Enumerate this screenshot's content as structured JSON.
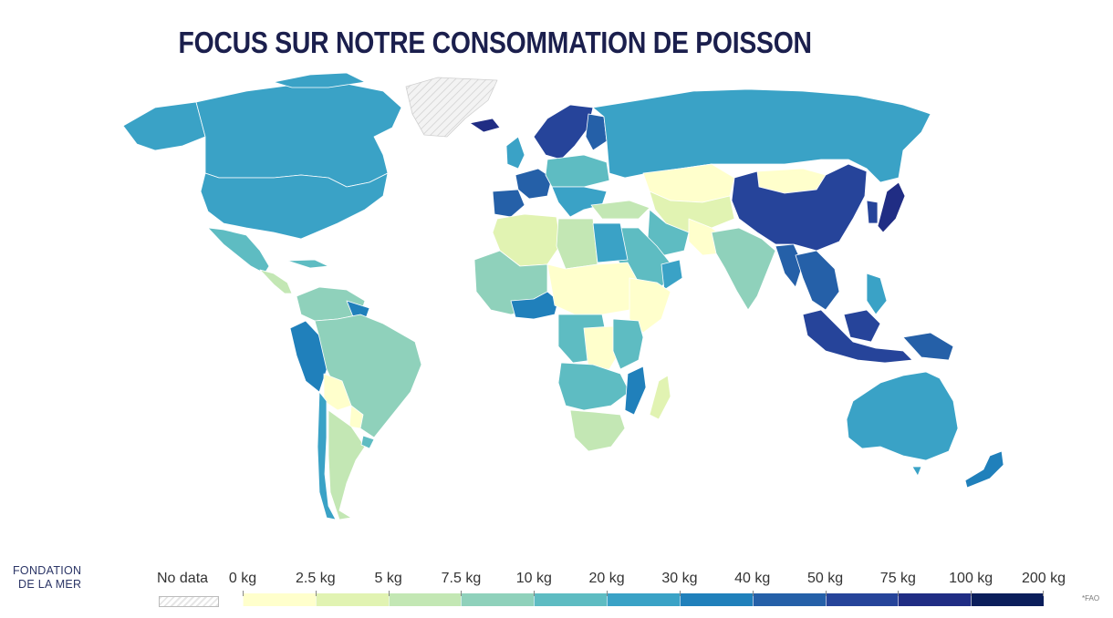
{
  "header": {
    "title": "FOCUS SUR NOTRE CONSOMMATION DE POISSON"
  },
  "logo": {
    "line1": "FONDATION",
    "line2": "DE LA MER"
  },
  "legend": {
    "nodata_label": "No data",
    "ticks": [
      "0 kg",
      "2.5 kg",
      "5 kg",
      "7.5 kg",
      "10 kg",
      "20 kg",
      "30 kg",
      "40 kg",
      "50 kg",
      "75 kg",
      "100 kg",
      "200 kg"
    ],
    "colors": [
      "#ffffcc",
      "#e1f3b2",
      "#c3e7b4",
      "#8fd1bb",
      "#5ebcc2",
      "#3aa2c6",
      "#2080bb",
      "#2560a8",
      "#26449a",
      "#202d84",
      "#0b1e5b"
    ]
  },
  "source": "*FAO",
  "palette": {
    "nodata": "#eeeeee",
    "border": "#ffffff",
    "title": "#1b1f4d"
  }
}
